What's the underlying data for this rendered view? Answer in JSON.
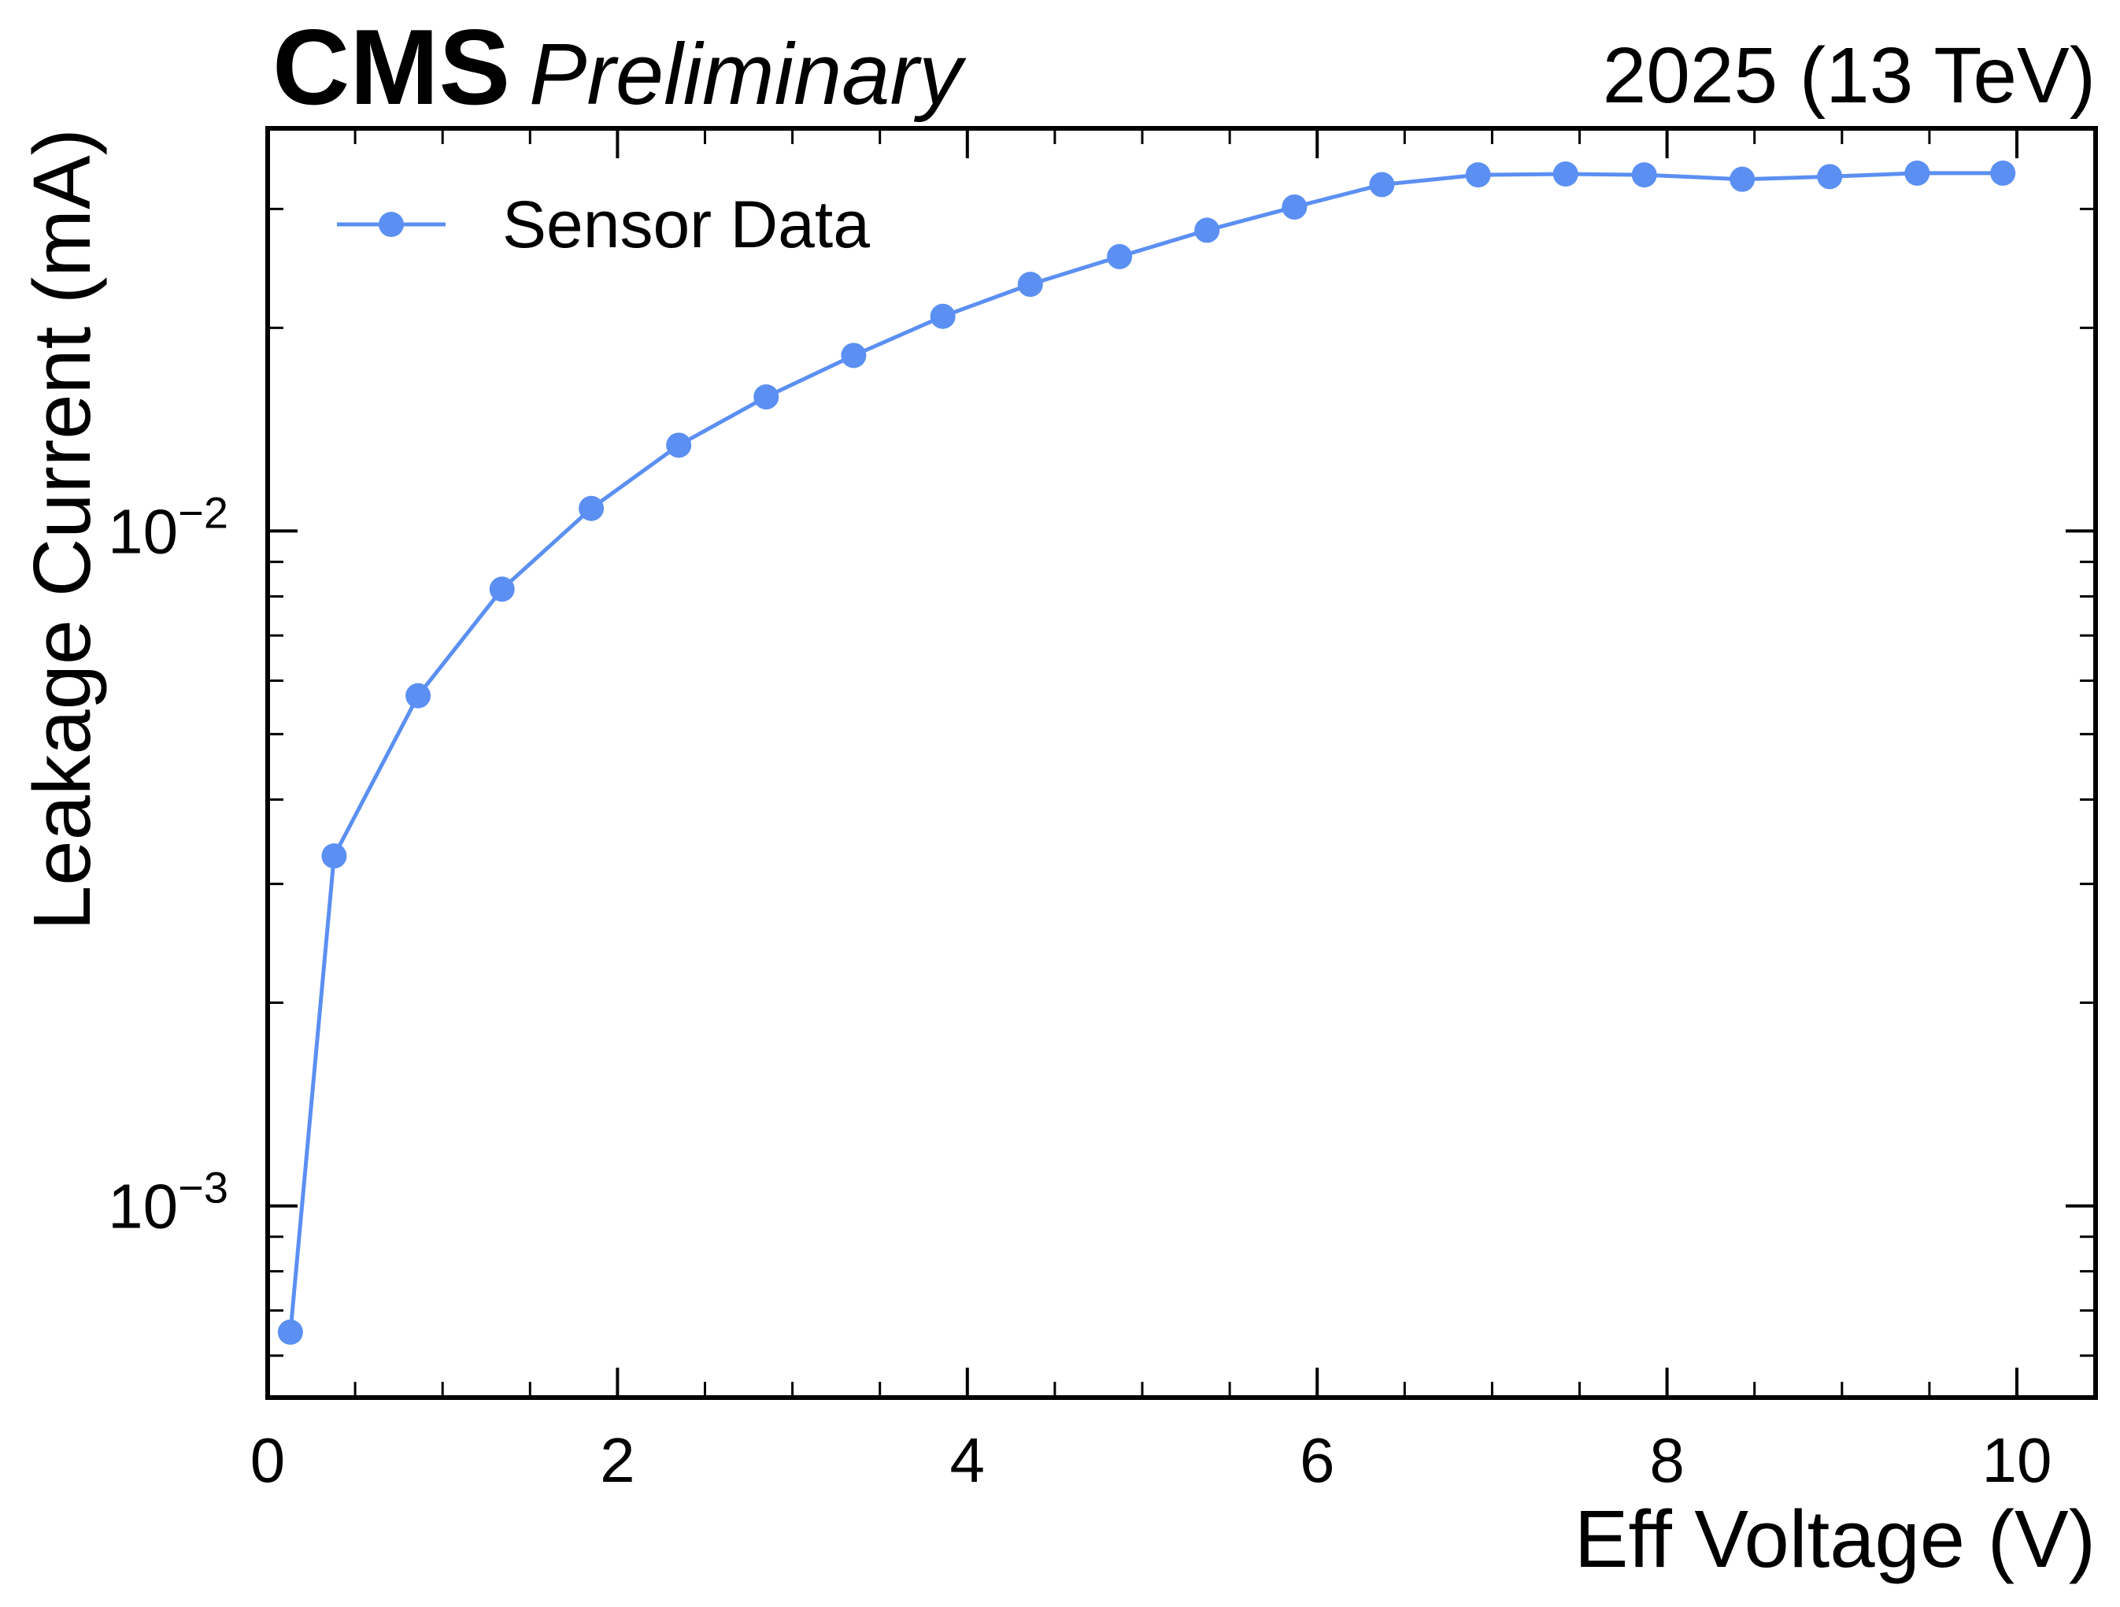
{
  "header": {
    "experiment": "CMS",
    "status": "Preliminary",
    "lumi_label": "2025 (13 TeV)"
  },
  "colors": {
    "series": "#5B8FF2",
    "axis": "#000000"
  },
  "chart_data": {
    "type": "line",
    "xlabel": "Eff Voltage (V)",
    "ylabel": "Leakage Current (mA)",
    "xlim": [
      0,
      10.45
    ],
    "ylim": [
      0.00052,
      0.0395
    ],
    "yscale": "log",
    "xticks": [
      0,
      2,
      4,
      6,
      8,
      10
    ],
    "yticks_major": [
      0.001,
      0.01
    ],
    "ytick_labels": [
      {
        "value": 0.001,
        "base": "10",
        "exp": "−3"
      },
      {
        "value": 0.01,
        "base": "10",
        "exp": "−2"
      }
    ],
    "legend": {
      "position": "top-left"
    },
    "grid": false,
    "series": [
      {
        "name": "Sensor Data",
        "marker": "circle",
        "x": [
          0.13,
          0.38,
          0.86,
          1.34,
          1.85,
          2.35,
          2.85,
          3.35,
          3.86,
          4.36,
          4.87,
          5.37,
          5.87,
          6.37,
          6.92,
          7.42,
          7.87,
          8.43,
          8.93,
          9.43,
          9.92
        ],
        "y": [
          0.00065,
          0.0033,
          0.0057,
          0.0082,
          0.0108,
          0.0134,
          0.0158,
          0.0182,
          0.0208,
          0.0232,
          0.0255,
          0.0279,
          0.0302,
          0.0326,
          0.0337,
          0.0338,
          0.0337,
          0.0332,
          0.0335,
          0.0339,
          0.0339
        ]
      }
    ]
  }
}
